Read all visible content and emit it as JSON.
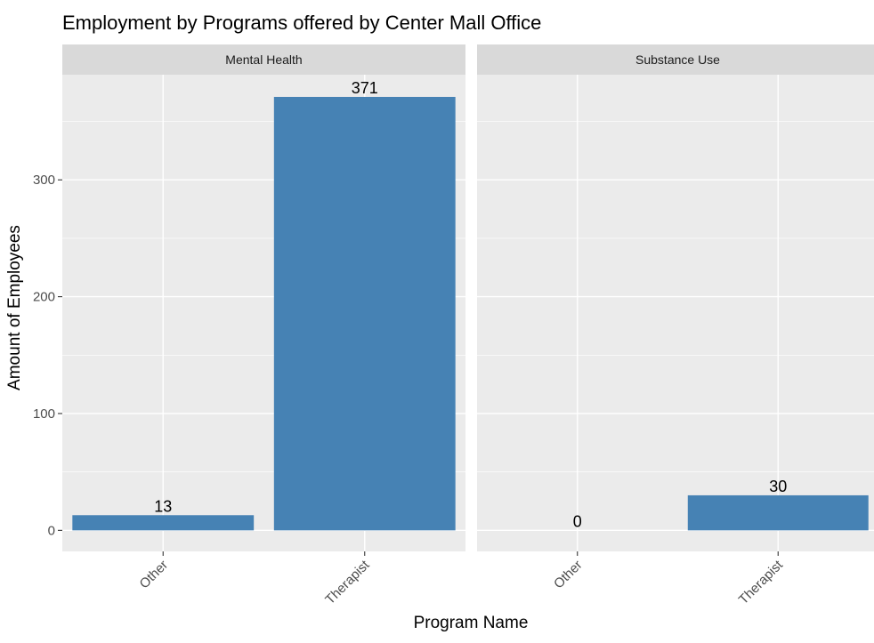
{
  "chart_data": {
    "type": "bar",
    "title": "Employment by Programs offered by Center Mall Office",
    "xlabel": "Program Name",
    "ylabel": "Amount of Employees",
    "categories": [
      "Other",
      "Therapist"
    ],
    "facets": [
      {
        "name": "Mental Health",
        "values": [
          13,
          371
        ]
      },
      {
        "name": "Substance Use",
        "values": [
          0,
          30
        ]
      }
    ],
    "yticks": [
      0,
      100,
      200,
      300
    ],
    "ylim": [
      -18,
      390
    ],
    "grid": true,
    "legend": "none",
    "colors": {
      "bar": "#4682B4",
      "panel": "#EBEBEB",
      "strip": "#D9D9D9",
      "grid": "#FFFFFF"
    }
  }
}
